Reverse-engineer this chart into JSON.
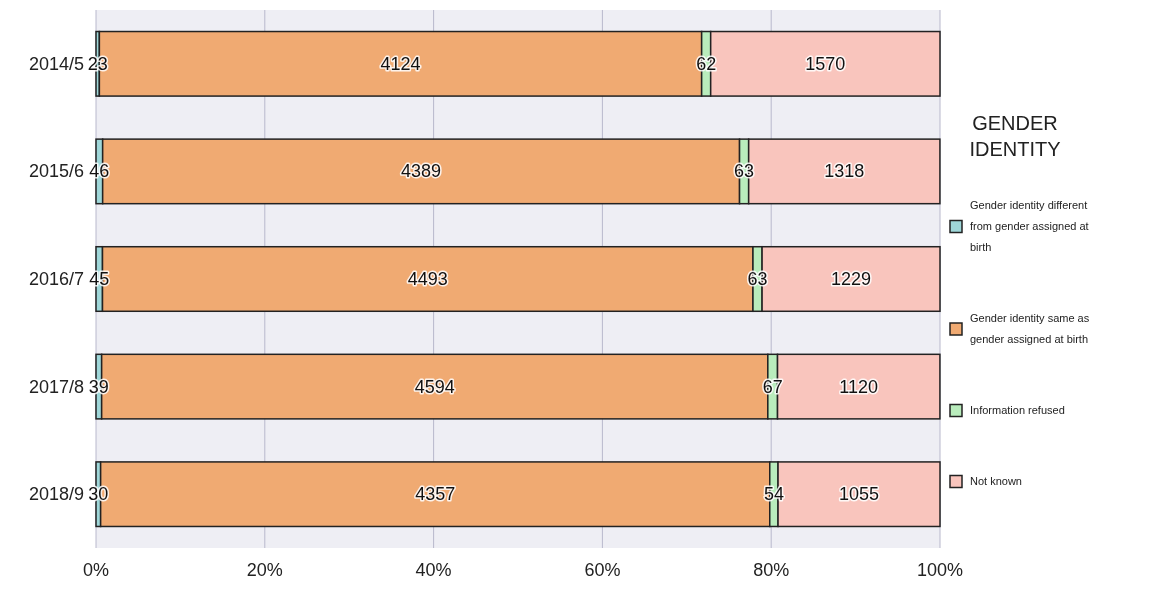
{
  "chart_data": {
    "type": "bar",
    "orientation": "horizontal",
    "stacked": true,
    "legend_title": "GENDER IDENTITY",
    "legend": "right",
    "grid": "x",
    "categories": [
      "2014/5",
      "2015/6",
      "2016/7",
      "2017/8",
      "2018/9"
    ],
    "series": [
      {
        "name": "Gender identity different from gender assigned at birth",
        "color": "#9fd7d9",
        "values": [
          0.4,
          0.79,
          0.77,
          0.67,
          0.55
        ]
      },
      {
        "name": "Gender identity same as gender assigned at birth",
        "color": "#f0aa72",
        "values": [
          71.36,
          75.46,
          77.07,
          78.93,
          79.28
        ]
      },
      {
        "name": "Information refused",
        "color": "#b9ecbc",
        "values": [
          1.07,
          1.08,
          1.08,
          1.15,
          0.98
        ]
      },
      {
        "name": "Not known",
        "color": "#f9c5bd",
        "values": [
          27.17,
          22.66,
          21.08,
          19.24,
          19.19
        ]
      }
    ],
    "annotations": [
      "23",
      "4124",
      "62",
      "1570",
      "46",
      "4389",
      "63",
      "1318",
      "45",
      "4493",
      "63",
      "1229",
      "39",
      "4594",
      "67",
      "1120",
      "30",
      "4357",
      "54",
      "1055"
    ],
    "xlim": [
      0,
      100
    ],
    "xticks": [
      {
        "value": 0,
        "label": "0%"
      },
      {
        "value": 20,
        "label": "20%"
      },
      {
        "value": 40,
        "label": "40%"
      },
      {
        "value": 60,
        "label": "60%"
      },
      {
        "value": 80,
        "label": "80%"
      },
      {
        "value": 100,
        "label": "100%"
      }
    ]
  }
}
